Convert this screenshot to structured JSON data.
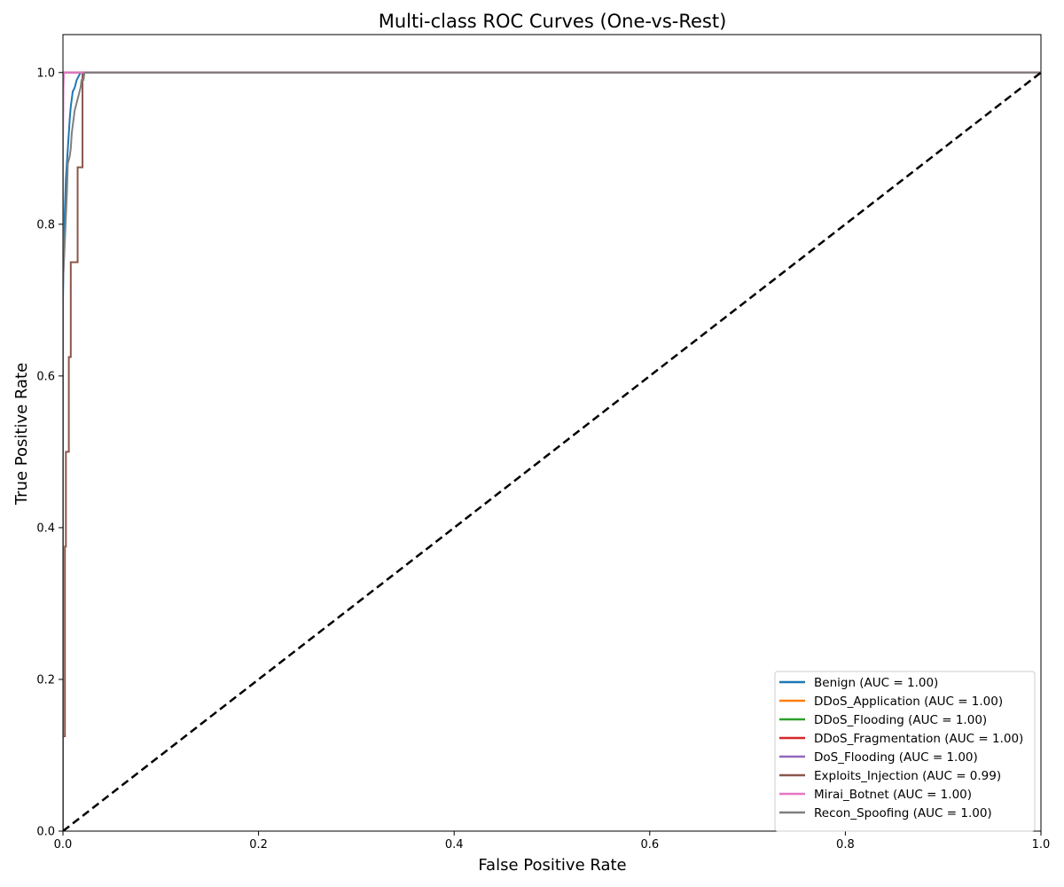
{
  "chart_data": {
    "type": "line",
    "title": "Multi-class ROC Curves (One-vs-Rest)",
    "xlabel": "False Positive Rate",
    "ylabel": "True Positive Rate",
    "xlim": [
      0.0,
      1.0
    ],
    "ylim": [
      0.0,
      1.05
    ],
    "x_ticks": [
      "0.0",
      "0.2",
      "0.4",
      "0.6",
      "0.8",
      "1.0"
    ],
    "y_ticks": [
      "0.0",
      "0.2",
      "0.4",
      "0.6",
      "0.8",
      "1.0"
    ],
    "grid": false,
    "legend_position": "bottom-right",
    "diagonal": {
      "x": [
        0,
        1
      ],
      "y": [
        0,
        1
      ],
      "color": "#000000",
      "style": "dashed"
    },
    "series": [
      {
        "name": "Benign (AUC = 1.00)",
        "color": "#1f77b4",
        "x": [
          0.0,
          0.0,
          0.001,
          0.002,
          0.003,
          0.004,
          0.005,
          0.006,
          0.007,
          0.008,
          0.009,
          0.01,
          0.012,
          0.014,
          0.016,
          0.018,
          0.02,
          1.0
        ],
        "y": [
          0.0,
          0.7,
          0.78,
          0.82,
          0.86,
          0.88,
          0.9,
          0.92,
          0.94,
          0.955,
          0.965,
          0.975,
          0.98,
          0.99,
          0.995,
          1.0,
          1.0,
          1.0
        ]
      },
      {
        "name": "DDoS_Application (AUC = 1.00)",
        "color": "#ff7f0e",
        "x": [
          0.0,
          0.0,
          0.001,
          1.0
        ],
        "y": [
          0.0,
          1.0,
          1.0,
          1.0
        ]
      },
      {
        "name": "DDoS_Flooding (AUC = 1.00)",
        "color": "#2ca02c",
        "x": [
          0.0,
          0.0,
          0.001,
          1.0
        ],
        "y": [
          0.0,
          1.0,
          1.0,
          1.0
        ]
      },
      {
        "name": "DDoS_Fragmentation (AUC = 1.00)",
        "color": "#d62728",
        "x": [
          0.0,
          0.0,
          0.001,
          1.0
        ],
        "y": [
          0.0,
          1.0,
          1.0,
          1.0
        ]
      },
      {
        "name": "DoS_Flooding (AUC = 1.00)",
        "color": "#9467bd",
        "x": [
          0.0,
          0.0,
          0.001,
          1.0
        ],
        "y": [
          0.0,
          1.0,
          1.0,
          1.0
        ]
      },
      {
        "name": "Exploits_Injection (AUC = 0.99)",
        "color": "#8c564b",
        "x": [
          0.0,
          0.0,
          0.002,
          0.002,
          0.003,
          0.003,
          0.006,
          0.006,
          0.008,
          0.008,
          0.015,
          0.015,
          0.02,
          0.02,
          1.0
        ],
        "y": [
          0.0,
          0.125,
          0.125,
          0.375,
          0.375,
          0.5,
          0.5,
          0.625,
          0.625,
          0.75,
          0.75,
          0.875,
          0.875,
          1.0,
          1.0
        ]
      },
      {
        "name": "Mirai_Botnet (AUC = 1.00)",
        "color": "#e377c2",
        "x": [
          0.0,
          0.0,
          0.0005,
          0.001,
          0.02,
          1.0
        ],
        "y": [
          0.0,
          0.9,
          0.98,
          1.0,
          1.0,
          1.0
        ]
      },
      {
        "name": "Recon_Spoofing (AUC = 1.00)",
        "color": "#7f7f7f",
        "x": [
          0.0,
          0.0,
          0.002,
          0.004,
          0.005,
          0.007,
          0.008,
          0.009,
          0.01,
          0.012,
          0.014,
          0.016,
          0.018,
          0.019,
          0.021,
          0.022,
          1.0
        ],
        "y": [
          0.0,
          0.72,
          0.78,
          0.84,
          0.88,
          0.89,
          0.9,
          0.92,
          0.93,
          0.95,
          0.96,
          0.97,
          0.98,
          0.99,
          0.99,
          1.0,
          1.0
        ]
      }
    ]
  }
}
